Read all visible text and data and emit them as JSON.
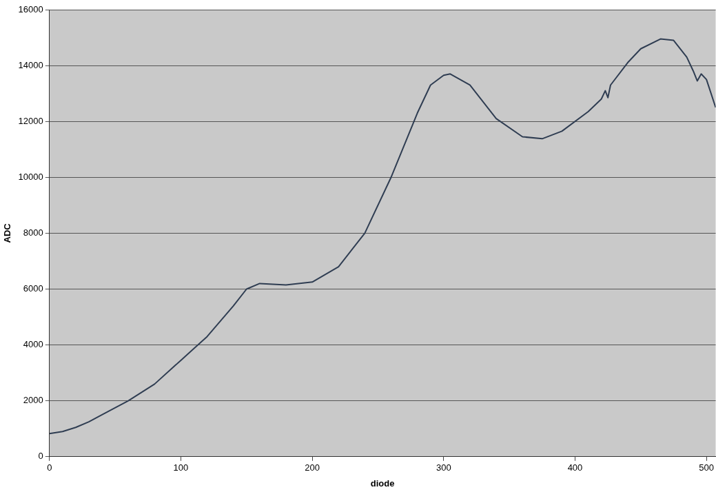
{
  "chart_data": {
    "type": "line",
    "xlabel": "diode",
    "ylabel": "ADC",
    "xlim": [
      0,
      507
    ],
    "xticks": [
      0,
      100,
      200,
      300,
      400,
      500
    ],
    "ylim": [
      0,
      16000
    ],
    "yticks": [
      0,
      2000,
      4000,
      6000,
      8000,
      10000,
      12000,
      14000,
      16000
    ],
    "grid": "y",
    "legend": false,
    "marker": "none",
    "line_style": "solid",
    "series": [
      {
        "color": "#2f3d52",
        "x": [
          0,
          10,
          20,
          30,
          40,
          60,
          80,
          100,
          120,
          140,
          150,
          160,
          180,
          200,
          220,
          240,
          260,
          280,
          290,
          300,
          305,
          320,
          340,
          360,
          375,
          390,
          410,
          420,
          423,
          425,
          427,
          440,
          450,
          465,
          475,
          485,
          490,
          493,
          496,
          500,
          507
        ],
        "values": [
          830,
          900,
          1050,
          1250,
          1500,
          2000,
          2600,
          3450,
          4300,
          5400,
          6000,
          6200,
          6150,
          6250,
          6800,
          8000,
          10000,
          12300,
          13300,
          13650,
          13700,
          13300,
          12100,
          11450,
          11380,
          11650,
          12350,
          12800,
          13100,
          12850,
          13300,
          14100,
          14600,
          14950,
          14900,
          14300,
          13800,
          13450,
          13700,
          13500,
          12500
        ]
      }
    ]
  }
}
